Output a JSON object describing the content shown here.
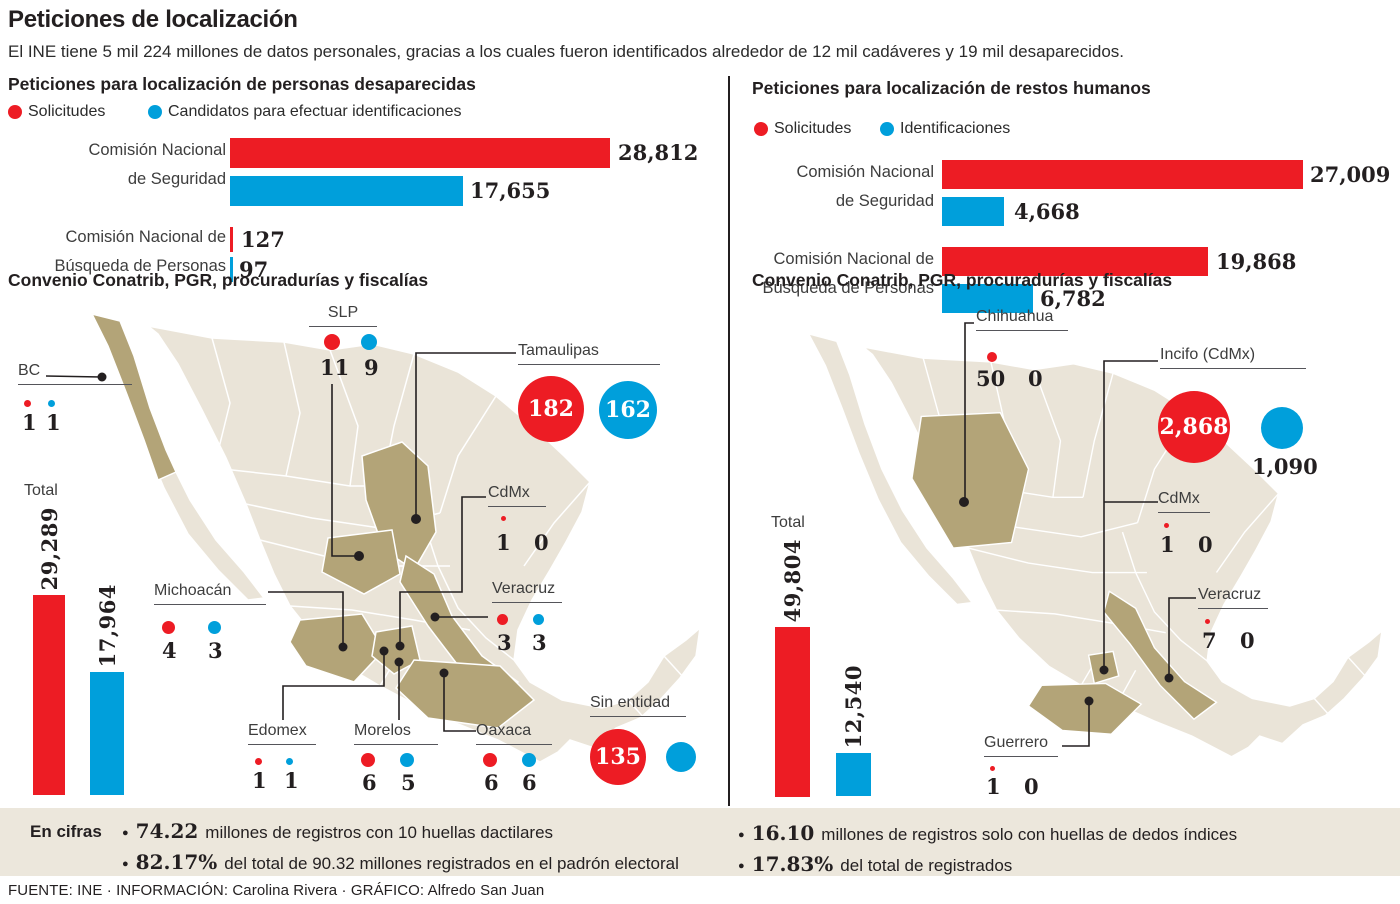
{
  "title": "Peticiones de localización",
  "subtitle": "El INE tiene 5 mil 224 millones de datos personales, gracias a los cuales fueron identificados alrededor de 12 mil cadáveres y 19 mil desaparecidos.",
  "colors": {
    "red": "#ed1c24",
    "blue": "#009fdb",
    "map_base": "#eae4d8",
    "map_highlight": "#b3a478",
    "band_bg": "#ece7dc",
    "ink": "#231f20"
  },
  "left": {
    "section_title": "Peticiones para localización de personas desaparecidas",
    "legend": {
      "solicitudes": "Solicitudes",
      "candidatos": "Candidatos para efectuar identificaciones"
    },
    "bars": {
      "rows": [
        {
          "label1": "Comisión Nacional",
          "label2": "de Seguridad",
          "red": 28812,
          "red_label": "28,812",
          "blue": 17655,
          "blue_label": "17,655"
        },
        {
          "label1": "Comisión Nacional de",
          "label2": "Búsqueda de Personas",
          "red": 127,
          "red_label": "127",
          "blue": 97,
          "blue_label": "97"
        }
      ]
    },
    "convenio_title": "Convenio Conatrib, PGR, procuradurías y fiscalías",
    "total": {
      "label": "Total",
      "red": 29289,
      "red_label": "29,289",
      "blue": 17964,
      "blue_label": "17,964"
    },
    "callouts": {
      "bc": {
        "label": "BC",
        "red": "1",
        "blue": "1"
      },
      "slp": {
        "label": "SLP",
        "red": "11",
        "blue": "9"
      },
      "tamaulipas": {
        "label": "Tamaulipas",
        "red": "182",
        "blue": "162"
      },
      "cdmx": {
        "label": "CdMx",
        "red": "1",
        "blue": "0"
      },
      "veracruz": {
        "label": "Veracruz",
        "red": "3",
        "blue": "3"
      },
      "michoacan": {
        "label": "Michoacán",
        "red": "4",
        "blue": "3"
      },
      "edomex": {
        "label": "Edomex",
        "red": "1",
        "blue": "1"
      },
      "morelos": {
        "label": "Morelos",
        "red": "6",
        "blue": "5"
      },
      "oaxaca": {
        "label": "Oaxaca",
        "red": "6",
        "blue": "6"
      },
      "sin_entidad": {
        "label": "Sin entidad",
        "red": "135"
      }
    }
  },
  "right": {
    "section_title": "Peticiones para localización de restos humanos",
    "legend": {
      "solicitudes": "Solicitudes",
      "candidatos": "Identificaciones"
    },
    "bars": {
      "rows": [
        {
          "label1": "Comisión Nacional",
          "label2": "de Seguridad",
          "red": 27009,
          "red_label": "27,009",
          "blue": 4668,
          "blue_label": "4,668"
        },
        {
          "label1": "Comisión Nacional de",
          "label2": "Búsqueda de Personas",
          "red": 19868,
          "red_label": "19,868",
          "blue": 6782,
          "blue_label": "6,782"
        }
      ]
    },
    "convenio_title": "Convenio Conatrib, PGR, procuradurías y fiscalías",
    "total": {
      "label": "Total",
      "red": 49804,
      "red_label": "49,804",
      "blue": 12540,
      "blue_label": "12,540"
    },
    "callouts": {
      "chihuahua": {
        "label": "Chihuahua",
        "red": "50",
        "blue": "0"
      },
      "incifo": {
        "label": "Incifo (CdMx)",
        "red": "2,868",
        "blue": "1,090"
      },
      "cdmx": {
        "label": "CdMx",
        "red": "1",
        "blue": "0"
      },
      "veracruz": {
        "label": "Veracruz",
        "red": "7",
        "blue": "0"
      },
      "guerrero": {
        "label": "Guerrero",
        "red": "1",
        "blue": "0"
      }
    }
  },
  "encifras": {
    "label": "En cifras",
    "left_items": [
      {
        "value": "74.22",
        "text": "millones de registros con 10 huellas dactilares"
      },
      {
        "value": "82.17%",
        "text": "del total de 90.32 millones registrados en el padrón electoral"
      }
    ],
    "right_items": [
      {
        "value": "16.10",
        "text": "millones de registros solo con huellas de dedos índices"
      },
      {
        "value": "17.83%",
        "text": "del total de registrados"
      }
    ]
  },
  "footer": "FUENTE: INE · INFORMACIÓN: Carolina Rivera · GRÁFICO: Alfredo San Juan",
  "chart_data": [
    {
      "type": "bar",
      "orientation": "horizontal",
      "title": "Peticiones para localización de personas desaparecidas",
      "categories": [
        "Comisión Nacional de Seguridad",
        "Comisión Nacional de Búsqueda de Personas"
      ],
      "series": [
        {
          "name": "Solicitudes",
          "values": [
            28812,
            127
          ],
          "color": "#ed1c24"
        },
        {
          "name": "Candidatos para efectuar identificaciones",
          "values": [
            17655,
            97
          ],
          "color": "#009fdb"
        }
      ],
      "legend_position": "top",
      "grid": false
    },
    {
      "type": "bar",
      "orientation": "horizontal",
      "title": "Peticiones para localización de restos humanos",
      "categories": [
        "Comisión Nacional de Seguridad",
        "Comisión Nacional de Búsqueda de Personas"
      ],
      "series": [
        {
          "name": "Solicitudes",
          "values": [
            27009,
            19868
          ],
          "color": "#ed1c24"
        },
        {
          "name": "Identificaciones",
          "values": [
            4668,
            6782
          ],
          "color": "#009fdb"
        }
      ],
      "legend_position": "top",
      "grid": false
    },
    {
      "type": "map",
      "title": "Convenio Conatrib, PGR, procuradurías y fiscalías — personas desaparecidas",
      "points": [
        {
          "name": "BC",
          "solicitudes": 1,
          "candidatos": 1
        },
        {
          "name": "SLP",
          "solicitudes": 11,
          "candidatos": 9
        },
        {
          "name": "Tamaulipas",
          "solicitudes": 182,
          "candidatos": 162
        },
        {
          "name": "CdMx",
          "solicitudes": 1,
          "candidatos": 0
        },
        {
          "name": "Veracruz",
          "solicitudes": 3,
          "candidatos": 3
        },
        {
          "name": "Michoacán",
          "solicitudes": 4,
          "candidatos": 3
        },
        {
          "name": "Edomex",
          "solicitudes": 1,
          "candidatos": 1
        },
        {
          "name": "Morelos",
          "solicitudes": 6,
          "candidatos": 5
        },
        {
          "name": "Oaxaca",
          "solicitudes": 6,
          "candidatos": 6
        },
        {
          "name": "Sin entidad",
          "solicitudes": 135,
          "candidatos": null
        }
      ],
      "total": {
        "solicitudes": 29289,
        "candidatos": 17964
      }
    },
    {
      "type": "map",
      "title": "Convenio Conatrib, PGR, procuradurías y fiscalías — restos humanos",
      "points": [
        {
          "name": "Chihuahua",
          "solicitudes": 50,
          "identificaciones": 0
        },
        {
          "name": "Incifo (CdMx)",
          "solicitudes": 2868,
          "identificaciones": 1090
        },
        {
          "name": "CdMx",
          "solicitudes": 1,
          "identificaciones": 0
        },
        {
          "name": "Veracruz",
          "solicitudes": 7,
          "identificaciones": 0
        },
        {
          "name": "Guerrero",
          "solicitudes": 1,
          "identificaciones": 0
        }
      ],
      "total": {
        "solicitudes": 49804,
        "identificaciones": 12540
      }
    }
  ]
}
